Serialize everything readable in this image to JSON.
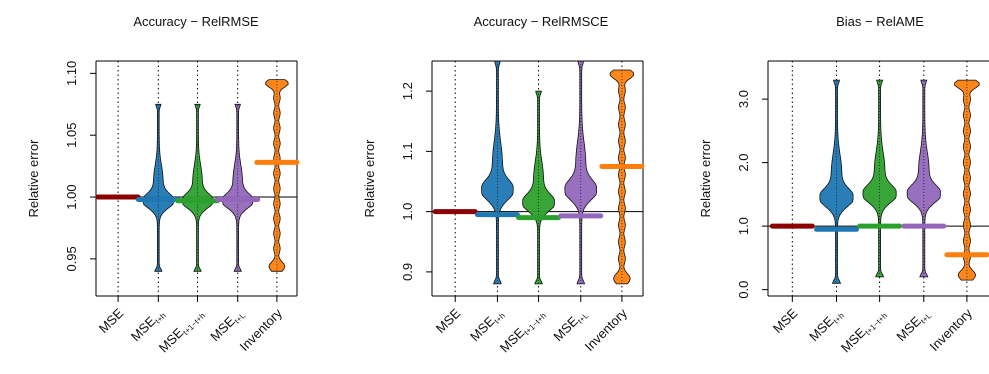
{
  "chart_data": [
    {
      "type": "violin",
      "title": "Accuracy − RelRMSE",
      "ylabel": "Relative error",
      "ylim": [
        0.92,
        1.11
      ],
      "yticks": [
        0.95,
        1.0,
        1.05,
        1.1
      ],
      "ytick_labels": [
        "0.95",
        "1.00",
        "1.05",
        "1.10"
      ],
      "reference_line": 1.0,
      "categories": [
        {
          "base": "MSE",
          "sub": ""
        },
        {
          "base": "MSE",
          "sub": "t+h"
        },
        {
          "base": "MSE",
          "sub": "t+1−t+h"
        },
        {
          "base": "MSE",
          "sub": "t+L"
        },
        {
          "base": "Inventory",
          "sub": ""
        }
      ],
      "series": [
        {
          "color": "#8b0000",
          "median": 1.0,
          "min": 1.0,
          "max": 1.0
        },
        {
          "color": "#1f77b4",
          "median": 0.998,
          "min": 0.94,
          "max": 1.075
        },
        {
          "color": "#2ca02c",
          "median": 0.997,
          "min": 0.94,
          "max": 1.075
        },
        {
          "color": "#9467bd",
          "median": 0.998,
          "min": 0.94,
          "max": 1.075
        },
        {
          "color": "#ff7f0e",
          "median": 1.028,
          "min": 0.94,
          "max": 1.095
        }
      ]
    },
    {
      "type": "violin",
      "title": "Accuracy − RelRMSCE",
      "ylabel": "Relative error",
      "ylim": [
        0.86,
        1.25
      ],
      "yticks": [
        0.9,
        1.0,
        1.1,
        1.2
      ],
      "ytick_labels": [
        "0.9",
        "1.0",
        "1.1",
        "1.2"
      ],
      "reference_line": 1.0,
      "categories": [
        {
          "base": "MSE",
          "sub": ""
        },
        {
          "base": "MSE",
          "sub": "t+h"
        },
        {
          "base": "MSE",
          "sub": "t+1−t+h"
        },
        {
          "base": "MSE",
          "sub": "t+L"
        },
        {
          "base": "Inventory",
          "sub": ""
        }
      ],
      "series": [
        {
          "color": "#8b0000",
          "median": 1.0,
          "min": 1.0,
          "max": 1.0
        },
        {
          "color": "#1f77b4",
          "median": 0.995,
          "min": 0.88,
          "max": 1.25
        },
        {
          "color": "#2ca02c",
          "median": 0.99,
          "min": 0.88,
          "max": 1.2
        },
        {
          "color": "#9467bd",
          "median": 0.993,
          "min": 0.88,
          "max": 1.25
        },
        {
          "color": "#ff7f0e",
          "median": 1.075,
          "min": 0.88,
          "max": 1.235
        }
      ]
    },
    {
      "type": "violin",
      "title": "Bias − RelAME",
      "ylabel": "Relative error",
      "ylim": [
        -0.1,
        3.6
      ],
      "yticks": [
        0.0,
        1.0,
        2.0,
        3.0
      ],
      "ytick_labels": [
        "0.0",
        "1.0",
        "2.0",
        "3.0"
      ],
      "reference_line": 1.0,
      "categories": [
        {
          "base": "MSE",
          "sub": ""
        },
        {
          "base": "MSE",
          "sub": "t+h"
        },
        {
          "base": "MSE",
          "sub": "t+1−t+h"
        },
        {
          "base": "MSE",
          "sub": "t+L"
        },
        {
          "base": "Inventory",
          "sub": ""
        }
      ],
      "series": [
        {
          "color": "#8b0000",
          "median": 1.0,
          "min": 1.0,
          "max": 1.0
        },
        {
          "color": "#1f77b4",
          "median": 0.95,
          "min": 0.1,
          "max": 3.3
        },
        {
          "color": "#2ca02c",
          "median": 1.0,
          "min": 0.2,
          "max": 3.3
        },
        {
          "color": "#9467bd",
          "median": 1.0,
          "min": 0.2,
          "max": 3.3
        },
        {
          "color": "#ff7f0e",
          "median": 0.55,
          "min": 0.15,
          "max": 3.3
        }
      ]
    }
  ]
}
